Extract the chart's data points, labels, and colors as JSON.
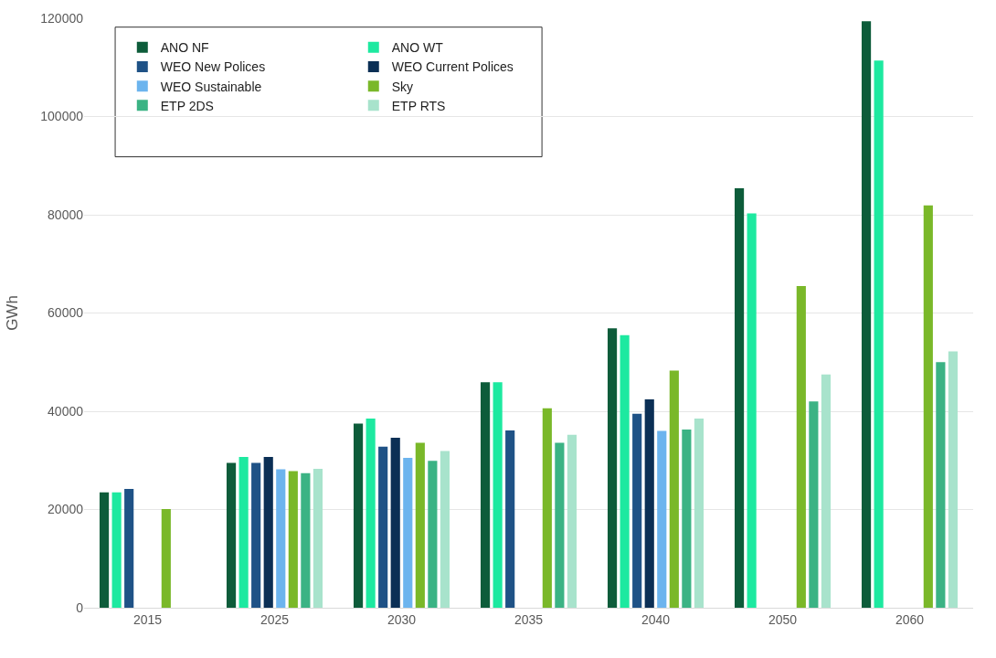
{
  "chart_data": {
    "type": "bar",
    "ylabel": "GWh",
    "categories": [
      "2015",
      "2025",
      "2030",
      "2035",
      "2040",
      "2050",
      "2060"
    ],
    "ylim": [
      0,
      120000
    ],
    "yticks": [
      0,
      20000,
      40000,
      60000,
      80000,
      100000,
      120000
    ],
    "grid": "y",
    "legend": "top left",
    "series": [
      {
        "name": "ANO NF",
        "color": "#0d5c3a",
        "values": [
          23500,
          29500,
          37500,
          45900,
          56900,
          85400,
          119400
        ]
      },
      {
        "name": "ANO WT",
        "color": "#1de9a0",
        "values": [
          23500,
          30700,
          38500,
          45900,
          55500,
          80300,
          111400
        ]
      },
      {
        "name": "WEO New Polices",
        "color": "#1f5286",
        "values": [
          24200,
          29500,
          32800,
          36100,
          39500,
          null,
          null
        ]
      },
      {
        "name": "WEO Current Polices",
        "color": "#0b2f55",
        "values": [
          null,
          30700,
          34600,
          null,
          42400,
          null,
          null
        ]
      },
      {
        "name": "WEO Sustainable",
        "color": "#6cb4ee",
        "values": [
          null,
          28200,
          30500,
          null,
          36000,
          null,
          null
        ]
      },
      {
        "name": "Sky",
        "color": "#7ab829",
        "values": [
          20100,
          27800,
          33600,
          40600,
          48300,
          65500,
          81900
        ]
      },
      {
        "name": "ETP 2DS",
        "color": "#3bb384",
        "values": [
          null,
          27400,
          29900,
          33600,
          36300,
          42000,
          50000
        ]
      },
      {
        "name": "ETP RTS",
        "color": "#a8e3cc",
        "values": [
          null,
          28300,
          31900,
          35200,
          38500,
          47500,
          52200
        ]
      }
    ]
  }
}
